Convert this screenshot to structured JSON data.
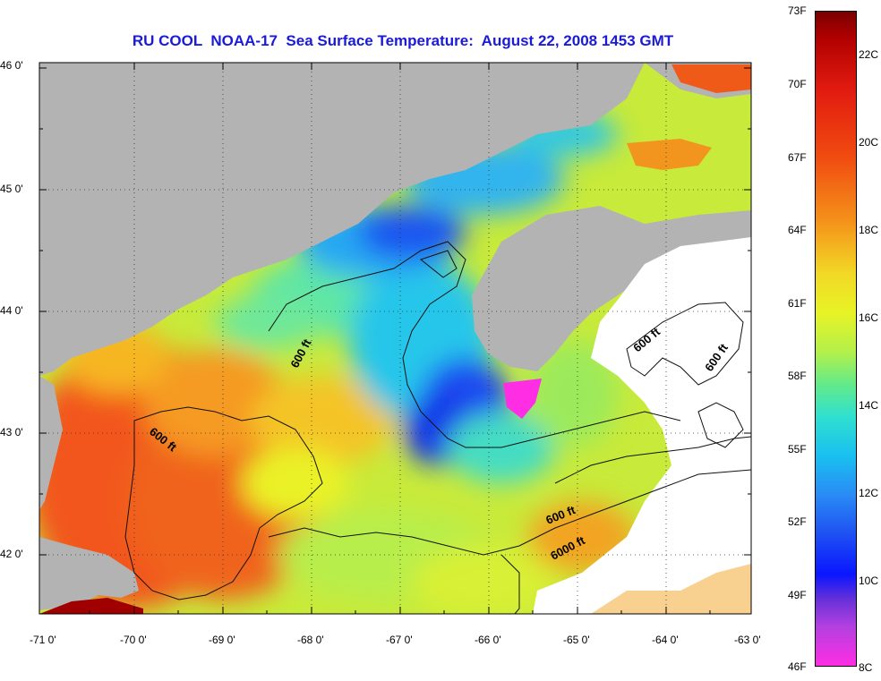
{
  "title": "RU COOL  NOAA-17  Sea Surface Temperature:  August 22, 2008 1453 GMT",
  "map": {
    "lat_ticks": [
      "46 0'",
      "45 0'",
      "44 0'",
      "43 0'",
      "42 0'"
    ],
    "lon_ticks": [
      "-71 0'",
      "-70 0'",
      "-69 0'",
      "-68 0'",
      "-67 0'",
      "-66 0'",
      "-65 0'",
      "-64 0'",
      "-63 0'"
    ],
    "contour_labels": [
      "600 ft",
      "600 ft",
      "600 ft",
      "600 ft",
      "600 ft",
      "6000 ft"
    ]
  },
  "colorbar": {
    "fahrenheit_labels": [
      "73F",
      "70F",
      "67F",
      "64F",
      "61F",
      "58F",
      "55F",
      "52F",
      "49F",
      "46F"
    ],
    "celsius_labels": [
      "22C",
      "20C",
      "18C",
      "16C",
      "14C",
      "12C",
      "10C",
      "8C"
    ],
    "top_color": "#7a0000",
    "bottom_color": "#ff2de4"
  },
  "colors": {
    "land": "#b3b3b3",
    "no_data": "#ffffff",
    "title": "#1a1ad8"
  }
}
